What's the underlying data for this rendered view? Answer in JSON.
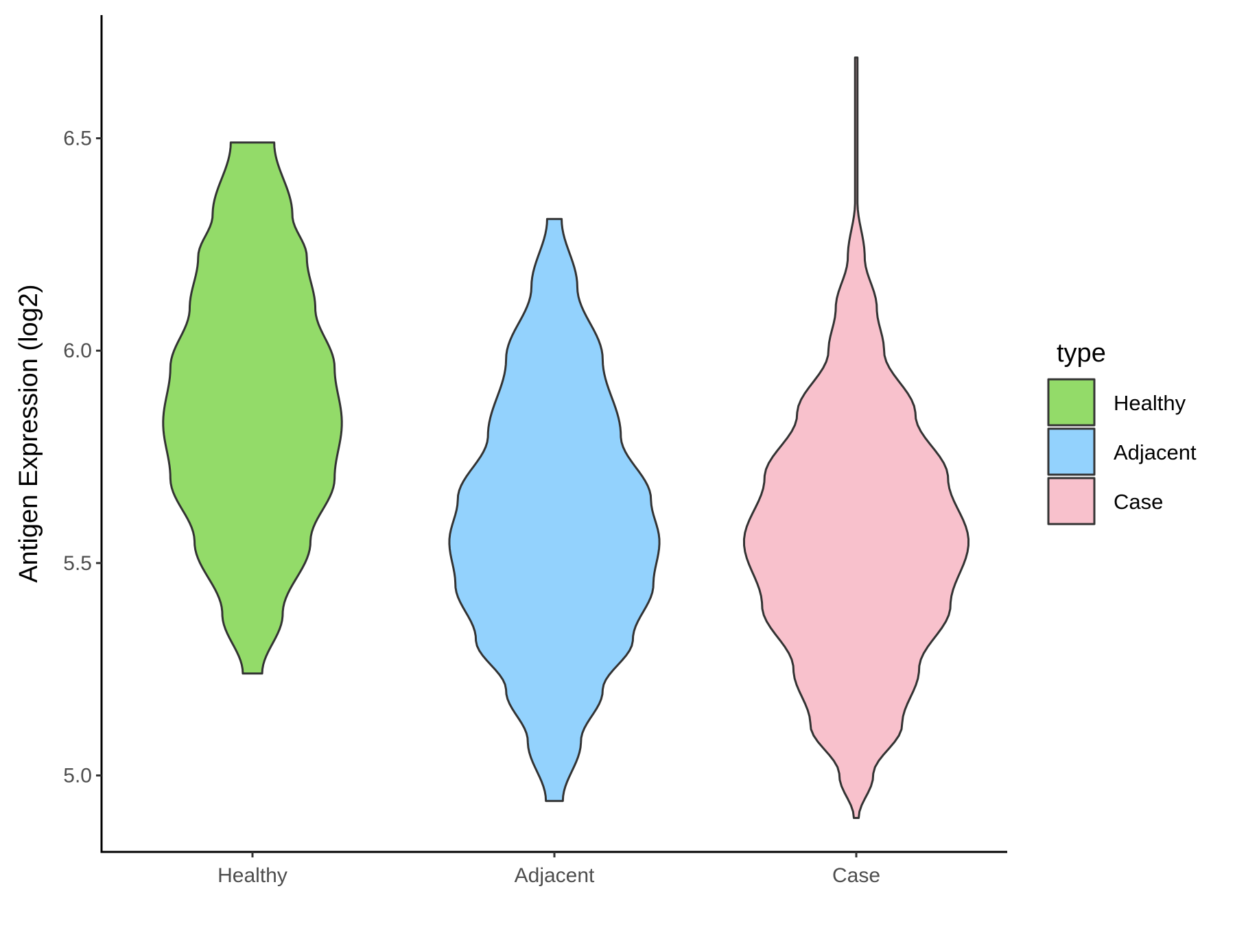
{
  "chart_data": {
    "type": "violin",
    "title": "",
    "xlabel": "",
    "ylabel": "Antigen Expression (log2)",
    "ylim": [
      4.82,
      6.79
    ],
    "y_ticks": [
      {
        "value": 5.0,
        "label": "5.0"
      },
      {
        "value": 5.5,
        "label": "5.5"
      },
      {
        "value": 6.0,
        "label": "6.0"
      },
      {
        "value": 6.5,
        "label": "6.5"
      }
    ],
    "categories": [
      "Healthy",
      "Adjacent",
      "Case"
    ],
    "legend": {
      "title": "type",
      "position": "right",
      "entries": [
        "Healthy",
        "Adjacent",
        "Case"
      ]
    },
    "series": [
      {
        "name": "Healthy",
        "color": "#93DB69",
        "min": 5.24,
        "max": 6.49,
        "density_profile": [
          [
            5.24,
            0.08
          ],
          [
            5.38,
            0.25
          ],
          [
            5.55,
            0.48
          ],
          [
            5.7,
            0.68
          ],
          [
            5.83,
            0.74
          ],
          [
            5.96,
            0.68
          ],
          [
            6.1,
            0.52
          ],
          [
            6.22,
            0.45
          ],
          [
            6.32,
            0.33
          ],
          [
            6.49,
            0.18
          ]
        ]
      },
      {
        "name": "Adjacent",
        "color": "#93D2FD",
        "min": 4.94,
        "max": 6.31,
        "density_profile": [
          [
            4.94,
            0.07
          ],
          [
            5.08,
            0.22
          ],
          [
            5.2,
            0.4
          ],
          [
            5.32,
            0.65
          ],
          [
            5.45,
            0.82
          ],
          [
            5.55,
            0.87
          ],
          [
            5.65,
            0.8
          ],
          [
            5.8,
            0.55
          ],
          [
            5.98,
            0.4
          ],
          [
            6.15,
            0.19
          ],
          [
            6.31,
            0.06
          ]
        ]
      },
      {
        "name": "Case",
        "color": "#F8C1CC",
        "min": 4.9,
        "max": 6.69,
        "density_profile": [
          [
            4.9,
            0.02
          ],
          [
            5.0,
            0.14
          ],
          [
            5.12,
            0.38
          ],
          [
            5.25,
            0.52
          ],
          [
            5.4,
            0.78
          ],
          [
            5.55,
            0.93
          ],
          [
            5.7,
            0.76
          ],
          [
            5.85,
            0.49
          ],
          [
            6.0,
            0.23
          ],
          [
            6.1,
            0.17
          ],
          [
            6.22,
            0.07
          ],
          [
            6.35,
            0.01
          ],
          [
            6.69,
            0.01
          ]
        ]
      }
    ]
  }
}
